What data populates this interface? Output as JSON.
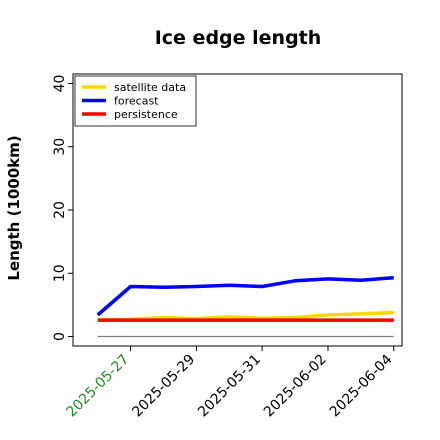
{
  "chart_data": {
    "type": "line",
    "title": "Ice edge length",
    "xlabel": "",
    "ylabel": "Length (1000km)",
    "ylim": [
      -1.5,
      41.5
    ],
    "yticks": [
      0,
      10,
      20,
      30,
      40
    ],
    "xlim": [
      "2025-05-25T06:00",
      "2025-06-04T06:00"
    ],
    "xticks": [
      "2025-05-27",
      "2025-05-29",
      "2025-05-31",
      "2025-06-02",
      "2025-06-04"
    ],
    "xtick_colors": [
      "#228B22",
      "#000000",
      "#000000",
      "#000000",
      "#000000"
    ],
    "x": [
      "2025-05-26",
      "2025-05-27",
      "2025-05-28",
      "2025-05-29",
      "2025-05-30",
      "2025-05-31",
      "2025-06-01",
      "2025-06-02",
      "2025-06-03",
      "2025-06-04"
    ],
    "series": [
      {
        "name": "satellite data",
        "color": "#FFD700",
        "values": [
          2.6,
          2.7,
          3.0,
          2.8,
          3.1,
          2.9,
          3.0,
          3.4,
          3.6,
          3.8
        ]
      },
      {
        "name": "forecast",
        "color": "#0000FF",
        "values": [
          3.4,
          7.9,
          7.8,
          7.9,
          8.1,
          7.9,
          8.8,
          9.1,
          8.9,
          9.3
        ]
      },
      {
        "name": "persistence",
        "color": "#FF0000",
        "values": [
          2.6,
          2.6,
          2.6,
          2.6,
          2.6,
          2.6,
          2.6,
          2.6,
          2.6,
          2.6
        ]
      }
    ],
    "reference_line": {
      "y": 0,
      "color": "#808080"
    },
    "grid": false,
    "legend_position": "top-left"
  }
}
